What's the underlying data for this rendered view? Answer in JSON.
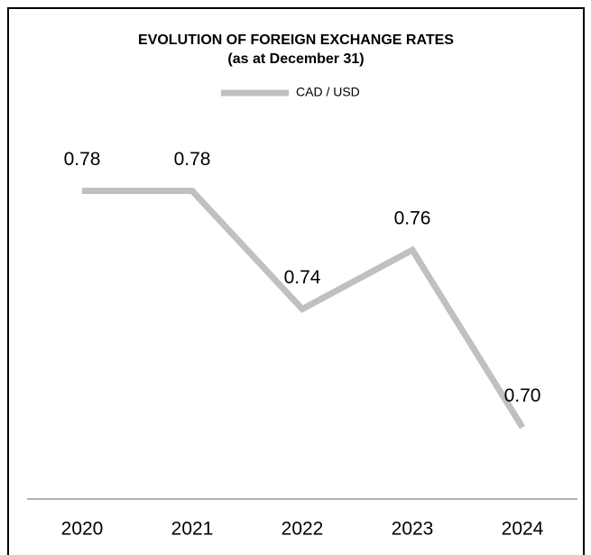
{
  "chart_data": {
    "type": "line",
    "title": "EVOLUTION OF FOREIGN EXCHANGE RATES",
    "subtitle": "(as at December 31)",
    "categories": [
      "2020",
      "2021",
      "2022",
      "2023",
      "2024"
    ],
    "series": [
      {
        "name": "CAD / USD",
        "color": "#c0c0c0",
        "values": [
          0.78,
          0.78,
          0.74,
          0.76,
          0.7
        ],
        "value_labels": [
          "0.78",
          "0.78",
          "0.74",
          "0.76",
          "0.70"
        ]
      }
    ],
    "ylim": [
      0.68,
      0.8
    ],
    "legend": "top"
  }
}
